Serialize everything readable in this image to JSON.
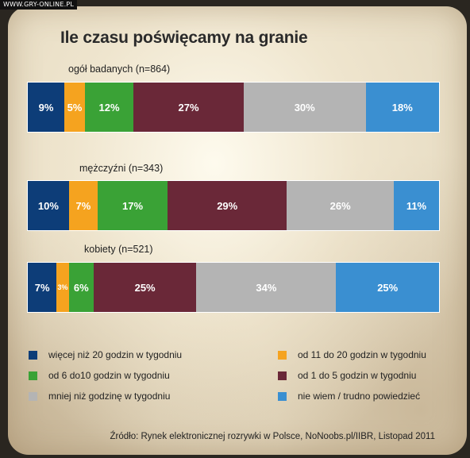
{
  "watermark": "WWW.GRY-ONLINE.PL",
  "colors": {
    "more_than_20": "#0d3d78",
    "h11_20": "#f5a31f",
    "h6_10": "#3aa236",
    "h1_5": "#6a2838",
    "less_than_1": "#b4b4b4",
    "dont_know": "#3a8fd1"
  },
  "chart_data": {
    "type": "bar",
    "stacked": true,
    "orientation": "horizontal",
    "title": "Ile czasu poświęcamy na granie",
    "categories": [
      "ogół badanych (n=864)",
      "mężczyźni (n=343)",
      "kobiety (n=521)"
    ],
    "value_format": "{v}%",
    "series": [
      {
        "name": "więcej niż 20 godzin w tygodniu",
        "color_key": "more_than_20",
        "values": [
          9,
          10,
          7
        ]
      },
      {
        "name": "od 11 do 20 godzin w tygodniu",
        "color_key": "h11_20",
        "values": [
          5,
          7,
          3
        ]
      },
      {
        "name": "od 6 do10 godzin w tygodniu",
        "color_key": "h6_10",
        "values": [
          12,
          17,
          6
        ]
      },
      {
        "name": "od 1 do 5 godzin w tygodniu",
        "color_key": "h1_5",
        "values": [
          27,
          29,
          25
        ]
      },
      {
        "name": "mniej niż godzinę w tygodniu",
        "color_key": "less_than_1",
        "values": [
          30,
          26,
          34
        ]
      },
      {
        "name": "nie wiem / trudno powiedzieć",
        "color_key": "dont_know",
        "values": [
          18,
          11,
          25
        ]
      }
    ],
    "legend_position": "bottom"
  },
  "source": "Źródło: Rynek elektronicznej rozrywki w Polsce, NoNoobs.pl/IIBR,  Listopad 2011"
}
